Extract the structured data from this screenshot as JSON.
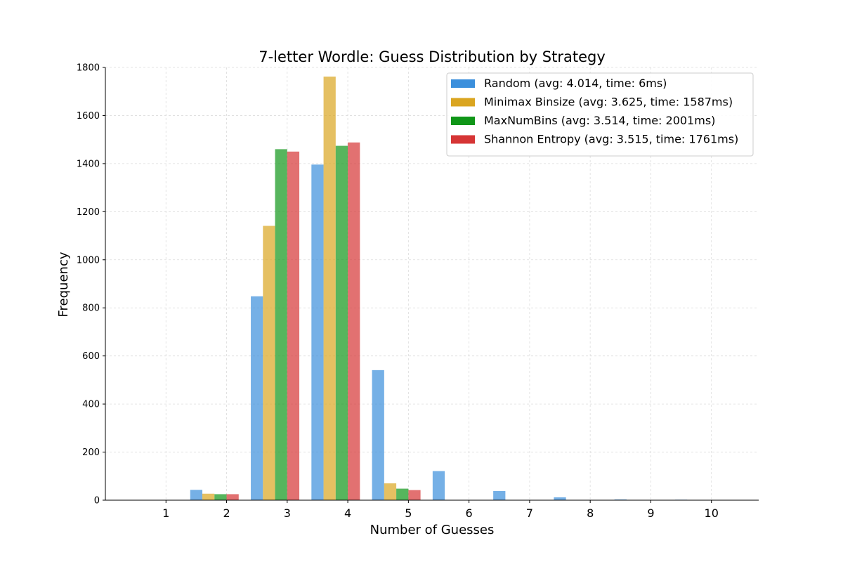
{
  "chart_data": {
    "type": "bar",
    "title": "7-letter Wordle: Guess Distribution by Strategy",
    "xlabel": "Number of Guesses",
    "ylabel": "Frequency",
    "categories": [
      "1",
      "2",
      "3",
      "4",
      "5",
      "6",
      "7",
      "8",
      "9",
      "10"
    ],
    "ylim": [
      0,
      1800
    ],
    "yticks": [
      0,
      200,
      400,
      600,
      800,
      1000,
      1200,
      1400,
      1600,
      1800
    ],
    "grid": true,
    "legend_position": "top-right",
    "series": [
      {
        "name": "Random (avg: 4.014, time: 6ms)",
        "color": "#3b8fdc",
        "values": [
          0,
          43,
          848,
          1396,
          541,
          121,
          38,
          12,
          3,
          2
        ]
      },
      {
        "name": "Minimax Binsize (avg: 3.625, time: 1587ms)",
        "color": "#daa520",
        "values": [
          0,
          27,
          1141,
          1762,
          70,
          0,
          0,
          0,
          0,
          0
        ]
      },
      {
        "name": "MaxNumBins (avg: 3.514, time: 2001ms)",
        "color": "#109618",
        "values": [
          0,
          25,
          1460,
          1474,
          48,
          0,
          0,
          0,
          0,
          0
        ]
      },
      {
        "name": "Shannon Entropy (avg: 3.515, time: 1761ms)",
        "color": "#d63535",
        "values": [
          0,
          25,
          1450,
          1488,
          42,
          0,
          0,
          0,
          0,
          0
        ]
      }
    ]
  }
}
